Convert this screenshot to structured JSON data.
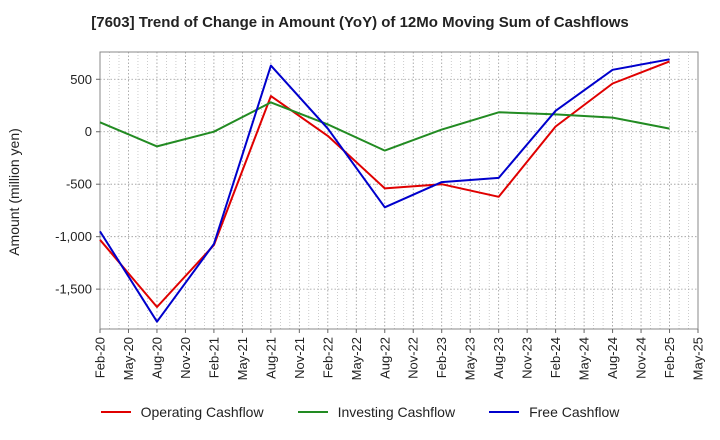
{
  "chart_data": {
    "type": "line",
    "title": "[7603]  Trend of Change in Amount (YoY) of 12Mo Moving Sum of Cashflows",
    "xlabel": "",
    "ylabel": "Amount (million yen)",
    "ylim": [
      -1880,
      760
    ],
    "yticks": [
      500,
      0,
      -500,
      -1000,
      -1500
    ],
    "ytick_labels": [
      "500",
      "0",
      "-500",
      "-1,000",
      "-1,500"
    ],
    "categories": [
      "Feb-20",
      "May-20",
      "Aug-20",
      "Nov-20",
      "Feb-21",
      "May-21",
      "Aug-21",
      "Nov-21",
      "Feb-22",
      "May-22",
      "Aug-22",
      "Nov-22",
      "Feb-23",
      "May-23",
      "Aug-23",
      "Nov-23",
      "Feb-24",
      "May-24",
      "Aug-24",
      "Nov-24",
      "Feb-25",
      "May-25"
    ],
    "grid": true,
    "legend_position": "bottom",
    "series": [
      {
        "name": "Operating Cashflow",
        "color": "#e00000",
        "values": [
          -1030,
          null,
          -1670,
          null,
          -1080,
          null,
          340,
          null,
          -40,
          null,
          -540,
          null,
          -500,
          null,
          -620,
          null,
          50,
          null,
          460,
          null,
          670,
          null
        ]
      },
      {
        "name": "Investing Cashflow",
        "color": "#228b22",
        "values": [
          90,
          null,
          -140,
          null,
          0,
          null,
          280,
          null,
          70,
          null,
          -180,
          null,
          20,
          null,
          185,
          null,
          165,
          null,
          135,
          null,
          30,
          null
        ]
      },
      {
        "name": "Free Cashflow",
        "color": "#0000cc",
        "values": [
          -950,
          null,
          -1810,
          null,
          -1070,
          null,
          630,
          null,
          30,
          null,
          -720,
          null,
          -480,
          null,
          -440,
          null,
          200,
          null,
          590,
          null,
          690,
          null
        ]
      }
    ]
  }
}
